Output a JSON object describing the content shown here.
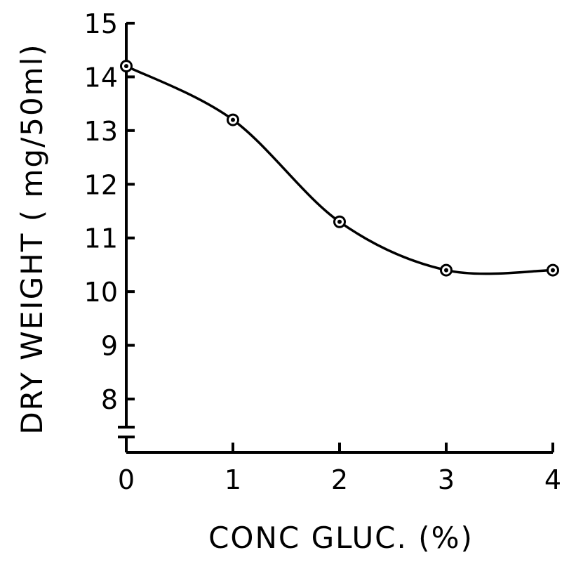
{
  "chart_data": {
    "type": "line",
    "title": "",
    "xlabel": "CONC GLUC. (%)",
    "ylabel": "DRY WEIGHT ( mg/50ml)",
    "x": [
      0,
      1,
      2,
      3,
      4
    ],
    "series": [
      {
        "values": [
          14.2,
          13.2,
          11.3,
          10.4,
          10.4
        ]
      }
    ],
    "xlim": [
      0,
      4
    ],
    "ylim": [
      8,
      15
    ],
    "yaxis_break": true,
    "grid": false,
    "xticks": [
      "0",
      "1",
      "2",
      "3",
      "4"
    ],
    "yticks": [
      "8",
      "9",
      "10",
      "11",
      "12",
      "13",
      "14",
      "15"
    ],
    "marker": "circled-dot",
    "line_style": "smooth fitted curve",
    "colors": {
      "ink": "#000000",
      "background": "#ffffff"
    }
  }
}
